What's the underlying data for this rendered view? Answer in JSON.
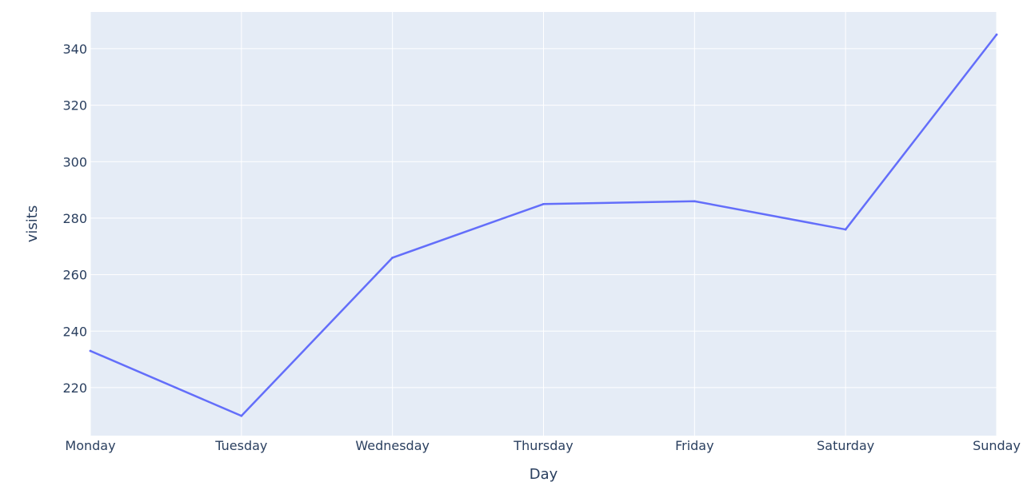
{
  "chart_data": {
    "type": "line",
    "title": "",
    "xlabel": "Day",
    "ylabel": "visits",
    "categories": [
      "Monday",
      "Tuesday",
      "Wednesday",
      "Thursday",
      "Friday",
      "Saturday",
      "Sunday"
    ],
    "series": [
      {
        "values": [
          233,
          210,
          266,
          285,
          286,
          276,
          345
        ],
        "color": "#636efa"
      }
    ],
    "ylim": [
      203,
      353
    ],
    "yticks": [
      220,
      240,
      260,
      280,
      300,
      320,
      340
    ],
    "grid": true,
    "legend": "none",
    "plot_background": "#e5ecf6",
    "grid_color": "#ffffff"
  }
}
